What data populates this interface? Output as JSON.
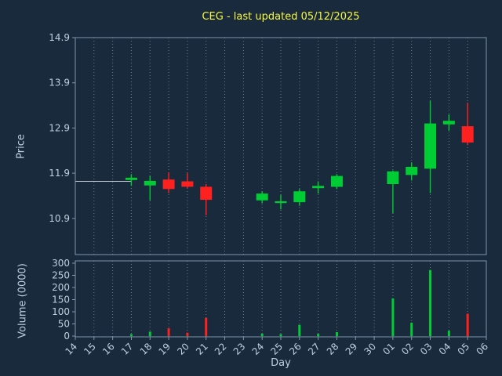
{
  "chart_data": {
    "type": "candlestick",
    "title": "CEG - last updated 05/12/2025",
    "xlabel": "Day",
    "ylabel_price": "Price",
    "ylabel_volume": "Volume (0000)",
    "x_categories": [
      "14",
      "15",
      "16",
      "17",
      "18",
      "19",
      "20",
      "21",
      "22",
      "23",
      "24",
      "25",
      "26",
      "27",
      "28",
      "29",
      "30",
      "01",
      "02",
      "03",
      "04",
      "05",
      "06"
    ],
    "price_ticks": [
      14.9,
      13.9,
      12.9,
      11.9,
      10.9
    ],
    "price_range": [
      10.1,
      14.9
    ],
    "volume_ticks": [
      300,
      250,
      200,
      150,
      100,
      50,
      0
    ],
    "volume_range": [
      0,
      300
    ],
    "grid": "vertical-dotted",
    "legend": "none",
    "prior_close_line": {
      "price": 11.72,
      "from_day": "14",
      "to_day": "17"
    },
    "candles": [
      {
        "day": "17",
        "open": 11.75,
        "high": 11.88,
        "low": 11.62,
        "close": 11.8,
        "volume": 8
      },
      {
        "day": "18",
        "open": 11.63,
        "high": 11.84,
        "low": 11.3,
        "close": 11.73,
        "volume": 18
      },
      {
        "day": "19",
        "open": 11.76,
        "high": 11.92,
        "low": 11.46,
        "close": 11.55,
        "volume": 32
      },
      {
        "day": "20",
        "open": 11.72,
        "high": 11.9,
        "low": 11.57,
        "close": 11.6,
        "volume": 14
      },
      {
        "day": "21",
        "open": 11.6,
        "high": 11.66,
        "low": 10.97,
        "close": 11.31,
        "volume": 75
      },
      {
        "day": "24",
        "open": 11.3,
        "high": 11.5,
        "low": 11.24,
        "close": 11.45,
        "volume": 10
      },
      {
        "day": "25",
        "open": 11.24,
        "high": 11.42,
        "low": 11.1,
        "close": 11.28,
        "volume": 8
      },
      {
        "day": "26",
        "open": 11.26,
        "high": 11.55,
        "low": 11.18,
        "close": 11.5,
        "volume": 46
      },
      {
        "day": "27",
        "open": 11.57,
        "high": 11.72,
        "low": 11.45,
        "close": 11.62,
        "volume": 9
      },
      {
        "day": "28",
        "open": 11.6,
        "high": 11.88,
        "low": 11.55,
        "close": 11.84,
        "volume": 16
      },
      {
        "day": "01",
        "open": 11.66,
        "high": 11.96,
        "low": 11.02,
        "close": 11.94,
        "volume": 155
      },
      {
        "day": "02",
        "open": 11.86,
        "high": 12.14,
        "low": 11.74,
        "close": 12.04,
        "volume": 55
      },
      {
        "day": "03",
        "open": 12.0,
        "high": 13.5,
        "low": 11.46,
        "close": 13.0,
        "volume": 272
      },
      {
        "day": "04",
        "open": 12.98,
        "high": 13.2,
        "low": 12.84,
        "close": 13.06,
        "volume": 22
      },
      {
        "day": "05",
        "open": 12.94,
        "high": 13.46,
        "low": 12.52,
        "close": 12.58,
        "volume": 92
      }
    ],
    "colors": {
      "up": "#00cc33",
      "down": "#ff2020",
      "frame": "#8096ab",
      "tick_text": "#bfcfdf",
      "title": "#f8f83c",
      "background": "#182a3c",
      "grid": "rgba(255,255,255,0.38)",
      "prior_close": "#c0c8d0"
    }
  }
}
